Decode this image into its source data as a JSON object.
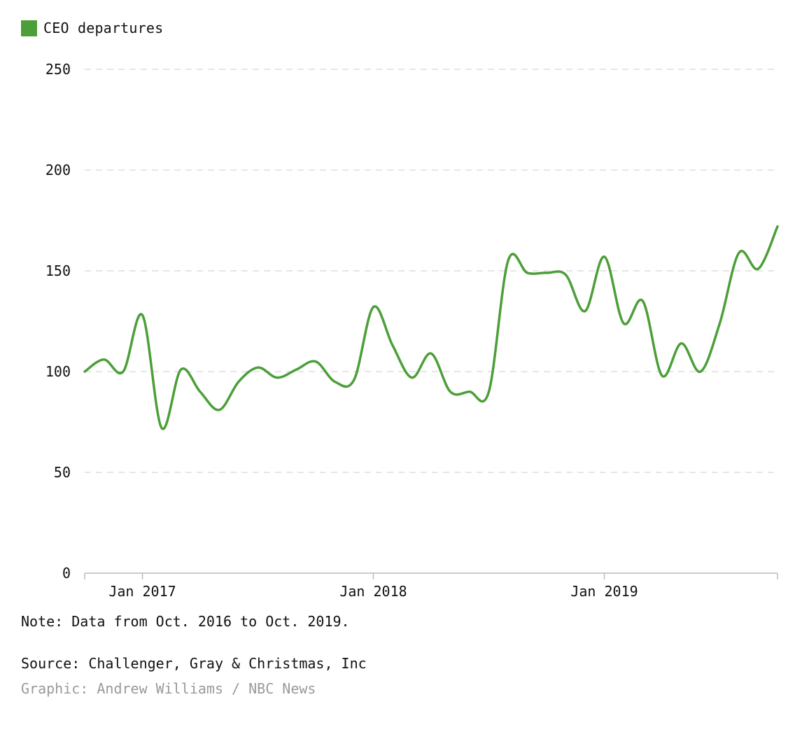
{
  "colors": {
    "series": "#4c9f38",
    "grid": "#dddddd",
    "axis": "#bbbbbb"
  },
  "legend": {
    "label": "CEO departures"
  },
  "chart_data": {
    "type": "line",
    "title": "",
    "xlabel": "",
    "ylabel": "",
    "ylim": [
      0,
      250
    ],
    "yticks": [
      0,
      50,
      100,
      150,
      200,
      250
    ],
    "xticks": [
      "Jan 2017",
      "Jan 2018",
      "Jan 2019"
    ],
    "grid": true,
    "legend_position": "top-left",
    "series": [
      {
        "name": "CEO departures",
        "x": [
          "Oct 2016",
          "Nov 2016",
          "Dec 2016",
          "Jan 2017",
          "Feb 2017",
          "Mar 2017",
          "Apr 2017",
          "May 2017",
          "Jun 2017",
          "Jul 2017",
          "Aug 2017",
          "Sep 2017",
          "Oct 2017",
          "Nov 2017",
          "Dec 2017",
          "Jan 2018",
          "Feb 2018",
          "Mar 2018",
          "Apr 2018",
          "May 2018",
          "Jun 2018",
          "Jul 2018",
          "Aug 2018",
          "Sep 2018",
          "Oct 2018",
          "Nov 2018",
          "Dec 2018",
          "Jan 2019",
          "Feb 2019",
          "Mar 2019",
          "Apr 2019",
          "May 2019",
          "Jun 2019",
          "Jul 2019",
          "Aug 2019",
          "Sep 2019",
          "Oct 2019"
        ],
        "values": [
          100,
          106,
          100,
          128,
          72,
          101,
          90,
          81,
          95,
          102,
          97,
          101,
          105,
          95,
          96,
          132,
          113,
          97,
          109,
          90,
          90,
          90,
          155,
          149,
          149,
          148,
          130,
          157,
          124,
          135,
          98,
          114,
          100,
          124,
          159,
          151,
          172
        ]
      }
    ]
  },
  "footer": {
    "note": "Note: Data from Oct. 2016 to Oct. 2019.",
    "source": "Source: Challenger, Gray & Christmas, Inc",
    "credit": "Graphic: Andrew Williams / NBC News"
  }
}
